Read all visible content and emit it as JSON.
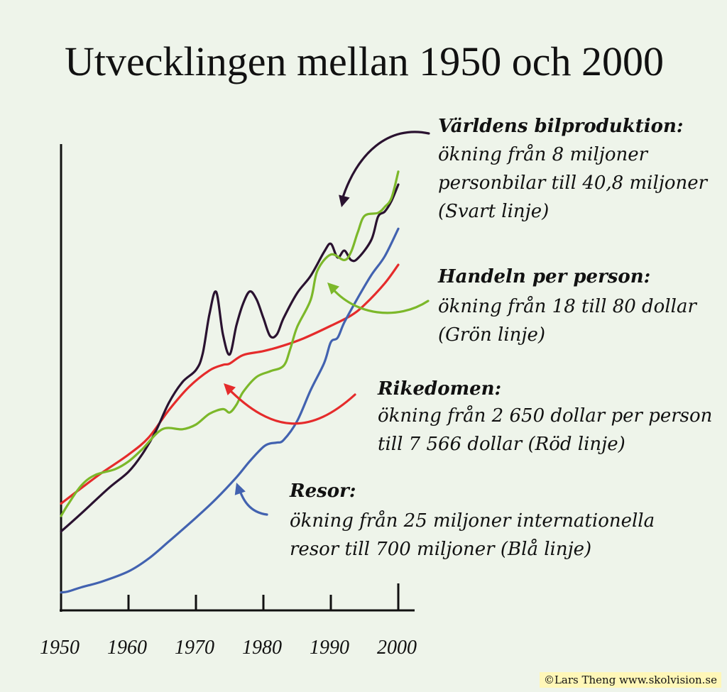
{
  "chart_data": {
    "type": "line",
    "title": "Utvecklingen mellan 1950 och 2000",
    "x_ticks": [
      1950,
      1960,
      1970,
      1980,
      1990,
      2000
    ],
    "xlim": [
      1950,
      2000
    ],
    "ylim": [
      0,
      100
    ],
    "grid": false,
    "legend": "annotations",
    "series": [
      {
        "key": "black",
        "color": "#2a1230",
        "label": {
          "heading": "Världens bilproduktion:",
          "lines": [
            "ökning från 8 miljoner",
            "personbilar till 40,8 miljoner",
            "(Svart linje)"
          ]
        },
        "points": [
          [
            1950,
            15.9
          ],
          [
            1953,
            20.1
          ],
          [
            1957,
            25.9
          ],
          [
            1960,
            29.8
          ],
          [
            1962,
            33.8
          ],
          [
            1964,
            39.1
          ],
          [
            1966,
            45.9
          ],
          [
            1968,
            50.7
          ],
          [
            1970,
            53.5
          ],
          [
            1971,
            57.3
          ],
          [
            1972,
            66.5
          ],
          [
            1973,
            71.7
          ],
          [
            1974,
            61.8
          ],
          [
            1975,
            57.1
          ],
          [
            1976,
            63.9
          ],
          [
            1977,
            69.0
          ],
          [
            1978,
            71.8
          ],
          [
            1979,
            69.9
          ],
          [
            1980,
            65.6
          ],
          [
            1981,
            61.4
          ],
          [
            1982,
            61.8
          ],
          [
            1983,
            65.6
          ],
          [
            1985,
            71.4
          ],
          [
            1987,
            75.4
          ],
          [
            1989,
            81.0
          ],
          [
            1990,
            82.9
          ],
          [
            1991,
            79.7
          ],
          [
            1992,
            81.3
          ],
          [
            1993,
            79.1
          ],
          [
            1994,
            79.5
          ],
          [
            1996,
            83.8
          ],
          [
            1997,
            89.2
          ],
          [
            1998,
            90.4
          ],
          [
            1999,
            92.9
          ],
          [
            2000,
            96.7
          ]
        ]
      },
      {
        "key": "green",
        "color": "#7cb82a",
        "label": {
          "heading": "Handeln per person:",
          "lines": [
            "ökning från 18 till 80 dollar",
            "(Grön linje)"
          ]
        },
        "points": [
          [
            1950,
            19.5
          ],
          [
            1951,
            22.1
          ],
          [
            1953,
            26.6
          ],
          [
            1955,
            29.0
          ],
          [
            1958,
            30.4
          ],
          [
            1960,
            32.2
          ],
          [
            1962,
            35.0
          ],
          [
            1965,
            39.7
          ],
          [
            1968,
            39.7
          ],
          [
            1970,
            40.8
          ],
          [
            1972,
            43.3
          ],
          [
            1974,
            44.4
          ],
          [
            1975,
            43.6
          ],
          [
            1976,
            45.4
          ],
          [
            1977,
            48.4
          ],
          [
            1979,
            51.9
          ],
          [
            1981,
            53.2
          ],
          [
            1983,
            54.5
          ],
          [
            1984,
            58.5
          ],
          [
            1985,
            63.5
          ],
          [
            1987,
            69.8
          ],
          [
            1988,
            76.6
          ],
          [
            1990,
            80.4
          ],
          [
            1992,
            79.1
          ],
          [
            1993,
            81.0
          ],
          [
            1994,
            85.6
          ],
          [
            1995,
            89.4
          ],
          [
            1997,
            90.1
          ],
          [
            1998,
            91.5
          ],
          [
            1999,
            93.6
          ],
          [
            2000,
            99.7
          ]
        ]
      },
      {
        "key": "red",
        "color": "#e52b2b",
        "label": {
          "heading": "Rikedomen:",
          "lines": [
            "ökning från 2 650 dollar per person",
            "till 7 566 dollar (Röd linje)"
          ]
        },
        "points": [
          [
            1950,
            22.4
          ],
          [
            1953,
            26.0
          ],
          [
            1956,
            29.5
          ],
          [
            1960,
            33.8
          ],
          [
            1963,
            37.8
          ],
          [
            1966,
            44.2
          ],
          [
            1969,
            49.6
          ],
          [
            1972,
            53.4
          ],
          [
            1974,
            54.7
          ],
          [
            1975,
            55.0
          ],
          [
            1977,
            57.0
          ],
          [
            1980,
            57.9
          ],
          [
            1983,
            59.2
          ],
          [
            1986,
            60.9
          ],
          [
            1990,
            63.8
          ],
          [
            1993,
            66.2
          ],
          [
            1995,
            68.7
          ],
          [
            1998,
            73.7
          ],
          [
            2000,
            78.0
          ]
        ]
      },
      {
        "key": "blue",
        "color": "#4262b0",
        "label": {
          "heading": "Resor:",
          "lines": [
            "ökning från 25 miljoner internationella",
            "resor till 700 miljoner (Blå linje)"
          ]
        },
        "points": [
          [
            1950,
            1.7
          ],
          [
            1951,
            1.9
          ],
          [
            1953,
            2.9
          ],
          [
            1956,
            4.2
          ],
          [
            1960,
            6.6
          ],
          [
            1963,
            9.6
          ],
          [
            1966,
            13.6
          ],
          [
            1970,
            19.1
          ],
          [
            1973,
            23.5
          ],
          [
            1976,
            28.5
          ],
          [
            1978,
            32.3
          ],
          [
            1980,
            35.6
          ],
          [
            1981,
            36.4
          ],
          [
            1982,
            36.6
          ],
          [
            1983,
            37.2
          ],
          [
            1985,
            41.6
          ],
          [
            1987,
            48.8
          ],
          [
            1989,
            55.1
          ],
          [
            1990,
            60.0
          ],
          [
            1991,
            61.0
          ],
          [
            1992,
            64.6
          ],
          [
            1994,
            70.3
          ],
          [
            1996,
            75.6
          ],
          [
            1998,
            80.0
          ],
          [
            2000,
            86.4
          ]
        ]
      }
    ]
  },
  "credit": "©Lars Theng www.skolvision.se"
}
